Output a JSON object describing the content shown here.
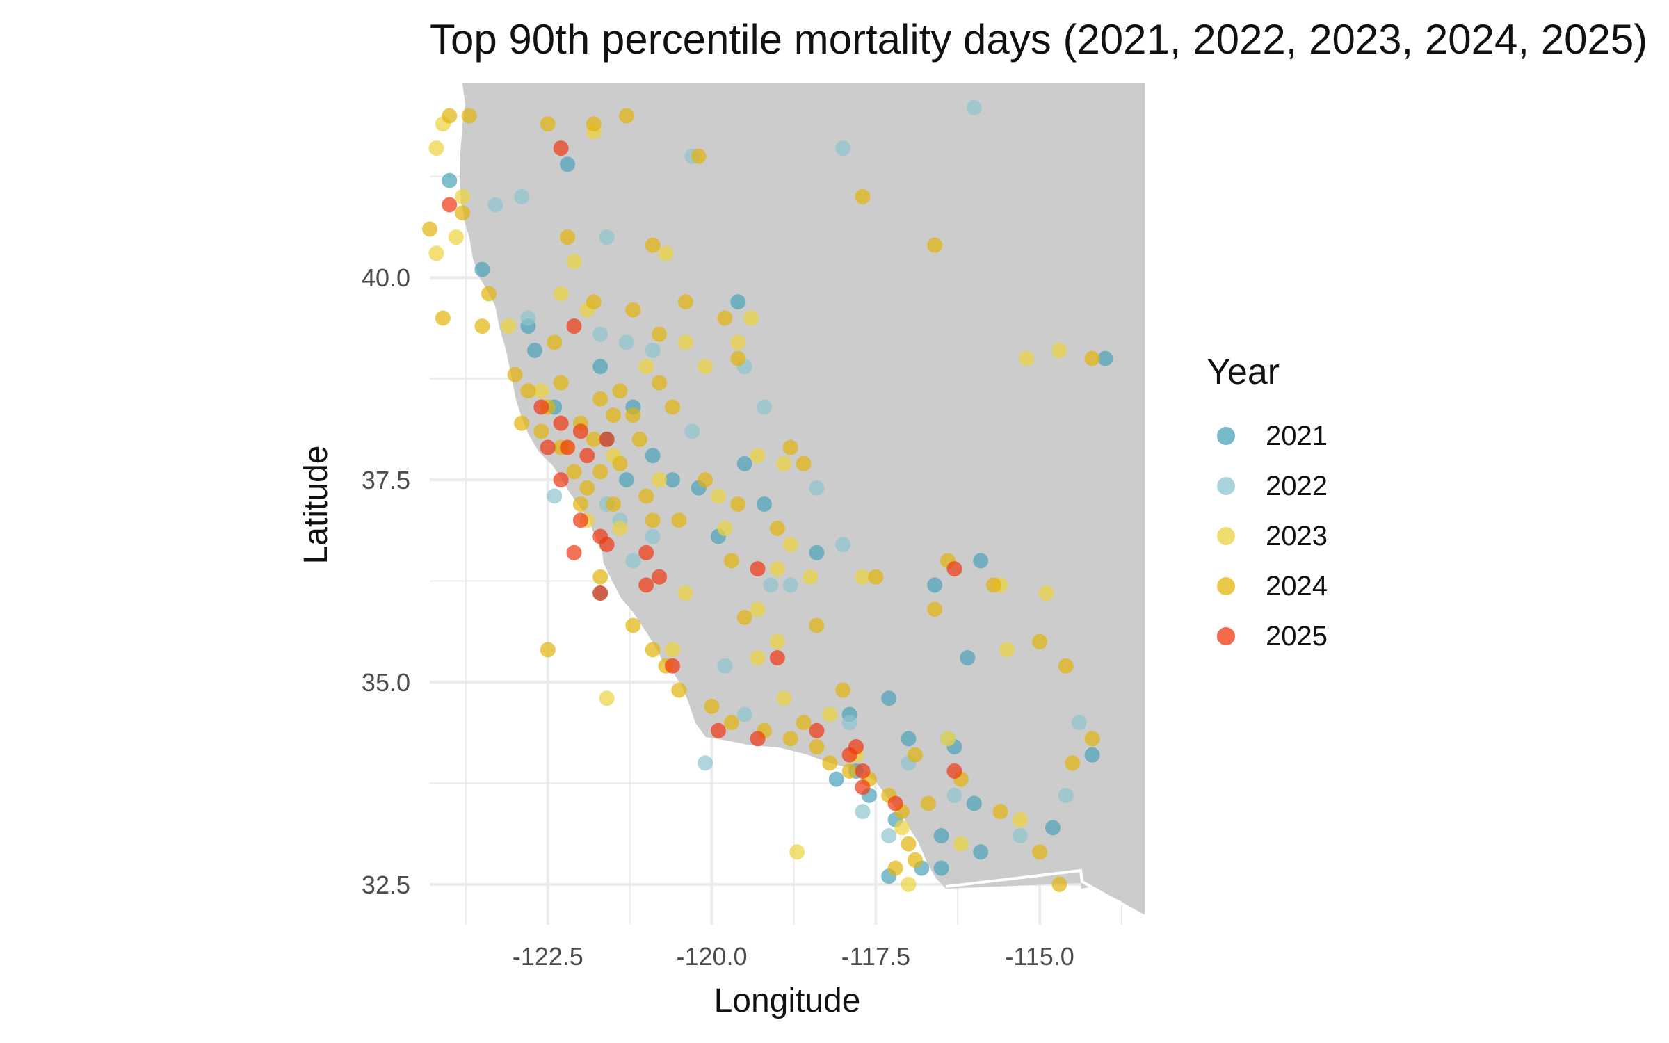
{
  "chart_data": {
    "type": "scatter",
    "title": "Top 90th percentile mortality days (2021, 2022, 2023, 2024, 2025)",
    "xlabel": "Longitude",
    "ylabel": "Latitude",
    "xlim": [
      -124.3,
      -113.4
    ],
    "ylim": [
      32.0,
      42.4
    ],
    "x_ticks": [
      -122.5,
      -120.0,
      -117.5,
      -115.0
    ],
    "x_tick_labels": [
      "-122.5",
      "-120.0",
      "-117.5",
      "-115.0"
    ],
    "y_ticks": [
      32.5,
      35.0,
      37.5,
      40.0
    ],
    "y_tick_labels": [
      "32.5",
      "35.0",
      "37.5",
      "40.0"
    ],
    "legend": {
      "title": "Year",
      "placement": "right",
      "items": [
        {
          "label": "2021",
          "color": "#4aa3ba"
        },
        {
          "label": "2022",
          "color": "#8ec5cf"
        },
        {
          "label": "2023",
          "color": "#ecd23c"
        },
        {
          "label": "2024",
          "color": "#e2b40a"
        },
        {
          "label": "2025",
          "color": "#f0360f"
        }
      ]
    },
    "series": [
      {
        "name": "2021",
        "color": "#4aa3ba",
        "points": [
          [
            -124.0,
            41.2
          ],
          [
            -123.5,
            40.1
          ],
          [
            -122.2,
            41.4
          ],
          [
            -122.7,
            39.1
          ],
          [
            -122.4,
            38.4
          ],
          [
            -121.6,
            38.0
          ],
          [
            -121.2,
            38.4
          ],
          [
            -120.9,
            37.8
          ],
          [
            -121.3,
            37.5
          ],
          [
            -120.6,
            37.5
          ],
          [
            -120.2,
            37.4
          ],
          [
            -119.5,
            37.7
          ],
          [
            -119.2,
            37.2
          ],
          [
            -119.9,
            36.8
          ],
          [
            -121.7,
            36.1
          ],
          [
            -118.4,
            36.6
          ],
          [
            -116.6,
            36.2
          ],
          [
            -115.9,
            36.5
          ],
          [
            -116.1,
            35.3
          ],
          [
            -117.3,
            34.8
          ],
          [
            -117.0,
            34.3
          ],
          [
            -116.3,
            34.2
          ],
          [
            -118.1,
            33.8
          ],
          [
            -117.6,
            33.6
          ],
          [
            -117.2,
            33.3
          ],
          [
            -116.8,
            32.7
          ],
          [
            -116.5,
            32.7
          ],
          [
            -116.5,
            33.1
          ],
          [
            -115.9,
            32.9
          ],
          [
            -116.0,
            33.5
          ],
          [
            -114.8,
            33.2
          ],
          [
            -114.2,
            34.1
          ],
          [
            -114.0,
            39.0
          ],
          [
            -119.6,
            39.7
          ],
          [
            -117.8,
            33.9
          ],
          [
            -117.3,
            32.6
          ],
          [
            -122.8,
            39.4
          ],
          [
            -121.7,
            38.9
          ],
          [
            -117.9,
            34.6
          ]
        ]
      },
      {
        "name": "2022",
        "color": "#8ec5cf",
        "points": [
          [
            -123.3,
            40.9
          ],
          [
            -122.9,
            41.0
          ],
          [
            -121.6,
            40.5
          ],
          [
            -120.3,
            41.5
          ],
          [
            -118.0,
            41.6
          ],
          [
            -116.0,
            42.1
          ],
          [
            -122.8,
            39.5
          ],
          [
            -121.7,
            39.3
          ],
          [
            -121.3,
            39.2
          ],
          [
            -120.9,
            39.1
          ],
          [
            -120.3,
            38.1
          ],
          [
            -119.5,
            38.9
          ],
          [
            -119.2,
            38.4
          ],
          [
            -122.4,
            37.3
          ],
          [
            -121.6,
            37.2
          ],
          [
            -120.9,
            36.8
          ],
          [
            -121.2,
            36.5
          ],
          [
            -119.1,
            36.2
          ],
          [
            -118.8,
            36.2
          ],
          [
            -118.0,
            36.7
          ],
          [
            -118.4,
            37.4
          ],
          [
            -117.9,
            34.5
          ],
          [
            -116.4,
            34.3
          ],
          [
            -117.7,
            33.4
          ],
          [
            -117.3,
            33.1
          ],
          [
            -116.3,
            33.6
          ],
          [
            -115.3,
            33.1
          ],
          [
            -114.4,
            34.5
          ],
          [
            -114.6,
            33.6
          ],
          [
            -120.1,
            34.0
          ],
          [
            -119.5,
            34.6
          ],
          [
            -117.0,
            34.0
          ],
          [
            -119.8,
            35.2
          ],
          [
            -121.4,
            37.0
          ]
        ]
      },
      {
        "name": "2023",
        "color": "#ecd23c",
        "points": [
          [
            -124.1,
            41.9
          ],
          [
            -124.2,
            41.6
          ],
          [
            -123.8,
            41.0
          ],
          [
            -124.2,
            40.3
          ],
          [
            -123.9,
            40.5
          ],
          [
            -122.1,
            40.2
          ],
          [
            -120.7,
            40.3
          ],
          [
            -121.8,
            41.8
          ],
          [
            -123.1,
            39.4
          ],
          [
            -122.3,
            39.8
          ],
          [
            -121.9,
            39.6
          ],
          [
            -120.4,
            39.2
          ],
          [
            -119.4,
            39.5
          ],
          [
            -119.6,
            39.2
          ],
          [
            -122.6,
            38.6
          ],
          [
            -121.0,
            38.9
          ],
          [
            -120.1,
            38.9
          ],
          [
            -122.2,
            37.9
          ],
          [
            -121.5,
            37.8
          ],
          [
            -120.8,
            37.5
          ],
          [
            -119.9,
            37.3
          ],
          [
            -119.3,
            37.8
          ],
          [
            -118.9,
            37.7
          ],
          [
            -121.9,
            37.0
          ],
          [
            -121.4,
            36.9
          ],
          [
            -119.8,
            36.9
          ],
          [
            -120.4,
            36.1
          ],
          [
            -118.8,
            36.7
          ],
          [
            -119.0,
            36.4
          ],
          [
            -118.5,
            36.3
          ],
          [
            -117.7,
            36.3
          ],
          [
            -119.3,
            35.9
          ],
          [
            -119.0,
            35.5
          ],
          [
            -119.3,
            35.3
          ],
          [
            -118.9,
            34.8
          ],
          [
            -118.2,
            34.6
          ],
          [
            -116.4,
            34.3
          ],
          [
            -115.5,
            35.4
          ],
          [
            -115.6,
            36.2
          ],
          [
            -114.9,
            36.1
          ],
          [
            -115.2,
            39.0
          ],
          [
            -114.7,
            39.1
          ],
          [
            -117.0,
            32.5
          ],
          [
            -118.7,
            32.9
          ],
          [
            -116.2,
            33.0
          ],
          [
            -115.3,
            33.3
          ],
          [
            -121.6,
            34.8
          ],
          [
            -120.6,
            35.4
          ],
          [
            -117.8,
            34.1
          ],
          [
            -117.1,
            33.2
          ]
        ]
      },
      {
        "name": "2024",
        "color": "#e2b40a",
        "points": [
          [
            -124.0,
            42.0
          ],
          [
            -123.7,
            42.0
          ],
          [
            -122.5,
            41.9
          ],
          [
            -121.8,
            41.9
          ],
          [
            -121.3,
            42.0
          ],
          [
            -120.2,
            41.5
          ],
          [
            -117.7,
            41.0
          ],
          [
            -116.6,
            40.4
          ],
          [
            -124.3,
            40.6
          ],
          [
            -123.8,
            40.8
          ],
          [
            -124.1,
            39.5
          ],
          [
            -123.5,
            39.4
          ],
          [
            -123.0,
            38.8
          ],
          [
            -122.4,
            39.2
          ],
          [
            -121.8,
            39.7
          ],
          [
            -121.2,
            39.6
          ],
          [
            -120.8,
            39.3
          ],
          [
            -120.4,
            39.7
          ],
          [
            -119.8,
            39.5
          ],
          [
            -119.6,
            39.0
          ],
          [
            -122.8,
            38.6
          ],
          [
            -122.5,
            38.4
          ],
          [
            -122.6,
            38.1
          ],
          [
            -122.3,
            37.9
          ],
          [
            -122.0,
            38.2
          ],
          [
            -121.7,
            38.5
          ],
          [
            -121.4,
            38.6
          ],
          [
            -121.2,
            38.3
          ],
          [
            -120.8,
            38.7
          ],
          [
            -120.6,
            38.4
          ],
          [
            -122.1,
            37.6
          ],
          [
            -121.9,
            37.4
          ],
          [
            -122.0,
            37.2
          ],
          [
            -121.7,
            37.6
          ],
          [
            -121.4,
            37.7
          ],
          [
            -121.0,
            37.3
          ],
          [
            -120.5,
            37.0
          ],
          [
            -120.1,
            37.5
          ],
          [
            -119.6,
            37.2
          ],
          [
            -118.8,
            37.9
          ],
          [
            -119.0,
            36.9
          ],
          [
            -118.6,
            37.7
          ],
          [
            -121.7,
            36.3
          ],
          [
            -121.2,
            35.7
          ],
          [
            -120.9,
            35.4
          ],
          [
            -120.7,
            35.2
          ],
          [
            -120.5,
            34.9
          ],
          [
            -120.0,
            34.7
          ],
          [
            -119.7,
            34.5
          ],
          [
            -119.2,
            34.4
          ],
          [
            -118.8,
            34.3
          ],
          [
            -118.4,
            34.2
          ],
          [
            -118.2,
            34.0
          ],
          [
            -117.9,
            33.9
          ],
          [
            -117.6,
            33.8
          ],
          [
            -117.3,
            33.6
          ],
          [
            -117.1,
            33.4
          ],
          [
            -117.0,
            33.0
          ],
          [
            -116.9,
            32.8
          ],
          [
            -117.2,
            32.7
          ],
          [
            -116.7,
            33.5
          ],
          [
            -116.2,
            33.8
          ],
          [
            -115.6,
            33.4
          ],
          [
            -115.0,
            32.9
          ],
          [
            -114.7,
            32.5
          ],
          [
            -116.6,
            35.9
          ],
          [
            -116.4,
            36.5
          ],
          [
            -115.7,
            36.2
          ],
          [
            -115.0,
            35.5
          ],
          [
            -114.6,
            35.2
          ],
          [
            -114.2,
            34.3
          ],
          [
            -114.5,
            34.0
          ],
          [
            -122.5,
            35.4
          ],
          [
            -119.5,
            35.8
          ],
          [
            -118.4,
            35.7
          ],
          [
            -117.5,
            36.3
          ],
          [
            -118.0,
            34.9
          ],
          [
            -116.9,
            34.1
          ],
          [
            -118.6,
            34.5
          ],
          [
            -119.7,
            36.5
          ],
          [
            -120.9,
            40.4
          ],
          [
            -122.2,
            40.5
          ],
          [
            -123.4,
            39.8
          ],
          [
            -114.2,
            39.0
          ],
          [
            -122.9,
            38.2
          ],
          [
            -122.3,
            38.7
          ],
          [
            -121.8,
            38.0
          ],
          [
            -121.5,
            38.3
          ],
          [
            -121.1,
            38.0
          ],
          [
            -120.9,
            37.0
          ],
          [
            -121.5,
            37.2
          ]
        ]
      },
      {
        "name": "2025",
        "color": "#f0360f",
        "points": [
          [
            -122.3,
            41.6
          ],
          [
            -124.0,
            40.9
          ],
          [
            -122.1,
            39.4
          ],
          [
            -122.6,
            38.4
          ],
          [
            -122.3,
            38.2
          ],
          [
            -122.0,
            38.1
          ],
          [
            -122.5,
            37.9
          ],
          [
            -122.2,
            37.9
          ],
          [
            -121.9,
            37.8
          ],
          [
            -121.6,
            38.0
          ],
          [
            -122.3,
            37.5
          ],
          [
            -122.0,
            37.0
          ],
          [
            -122.1,
            36.6
          ],
          [
            -121.7,
            36.8
          ],
          [
            -121.6,
            36.7
          ],
          [
            -121.0,
            36.6
          ],
          [
            -120.8,
            36.3
          ],
          [
            -121.7,
            36.1
          ],
          [
            -121.0,
            36.2
          ],
          [
            -119.3,
            36.4
          ],
          [
            -119.0,
            35.3
          ],
          [
            -120.6,
            35.2
          ],
          [
            -119.9,
            34.4
          ],
          [
            -119.3,
            34.3
          ],
          [
            -118.4,
            34.4
          ],
          [
            -117.9,
            34.1
          ],
          [
            -117.8,
            34.2
          ],
          [
            -117.7,
            33.9
          ],
          [
            -117.7,
            33.7
          ],
          [
            -117.2,
            33.5
          ],
          [
            -116.3,
            33.9
          ],
          [
            -116.3,
            36.4
          ]
        ]
      }
    ]
  }
}
